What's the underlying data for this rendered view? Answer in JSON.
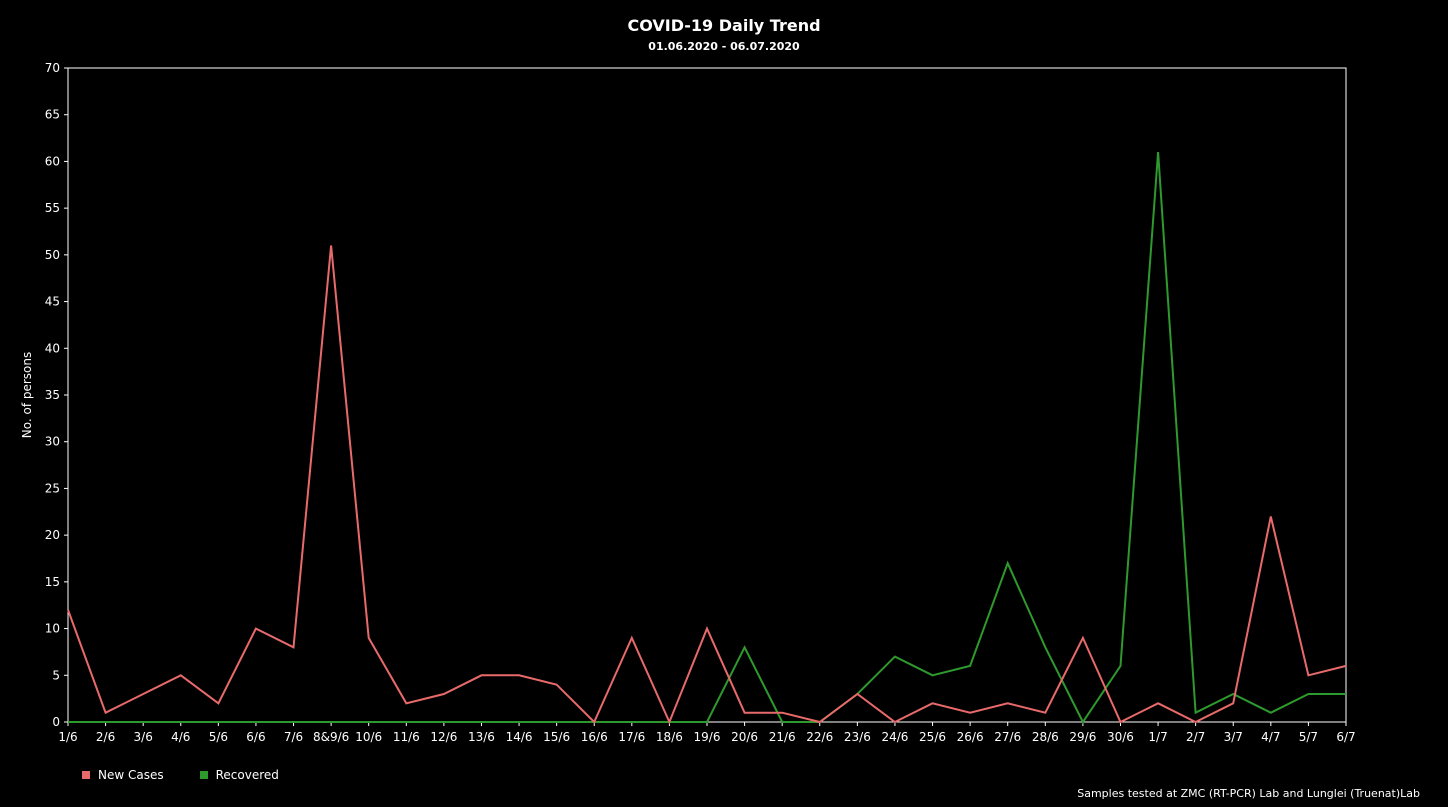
{
  "chart_data": {
    "type": "line",
    "title": "COVID-19 Daily Trend",
    "subtitle": "01.06.2020 - 06.07.2020",
    "ylabel": "No. of persons",
    "xlabel": "",
    "ylim": [
      0,
      70
    ],
    "ytick_step": 5,
    "grid": false,
    "legend_position": "bottom-left",
    "categories": [
      "1/6",
      "2/6",
      "3/6",
      "4/6",
      "5/6",
      "6/6",
      "7/6",
      "8&9/6",
      "10/6",
      "11/6",
      "12/6",
      "13/6",
      "14/6",
      "15/6",
      "16/6",
      "17/6",
      "18/6",
      "19/6",
      "20/6",
      "21/6",
      "22/6",
      "23/6",
      "24/6",
      "25/6",
      "26/6",
      "27/6",
      "28/6",
      "29/6",
      "30/6",
      "1/7",
      "2/7",
      "3/7",
      "4/7",
      "5/7",
      "6/7"
    ],
    "series": [
      {
        "name": "New Cases",
        "color": "#e86a6a",
        "values": [
          12,
          1,
          3,
          5,
          2,
          10,
          8,
          51,
          9,
          2,
          3,
          5,
          5,
          4,
          0,
          9,
          0,
          10,
          1,
          1,
          0,
          3,
          0,
          2,
          1,
          2,
          1,
          9,
          0,
          2,
          0,
          2,
          22,
          5,
          6
        ]
      },
      {
        "name": "Recovered",
        "color": "#2e9a2e",
        "values": [
          0,
          0,
          0,
          0,
          0,
          0,
          0,
          0,
          0,
          0,
          0,
          0,
          0,
          0,
          0,
          0,
          0,
          0,
          8,
          0,
          0,
          3,
          7,
          5,
          6,
          17,
          8,
          0,
          6,
          61,
          1,
          3,
          1,
          3,
          3
        ]
      }
    ],
    "source_note": "Samples tested at ZMC (RT-PCR) Lab and Lunglei (Truenat)Lab"
  }
}
